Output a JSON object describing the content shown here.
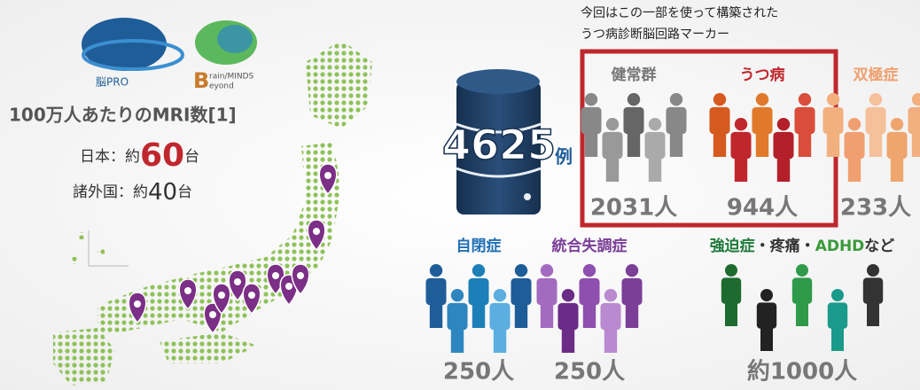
{
  "logos": [
    {
      "name": "脳PRO"
    },
    {
      "initial": "B",
      "line1": "rain/MINDS",
      "initial2": "B",
      "line2": "eyond"
    }
  ],
  "mri": {
    "title": "100万人あたりのMRI数[1]",
    "japan": {
      "prefix": "日本：約",
      "number": "60",
      "unit": "台"
    },
    "others": {
      "prefix": "諸外国：約",
      "number": "40",
      "unit": "台"
    }
  },
  "note": [
    "今回はこの一部を使って構築された",
    "うつ病診断脳回路マーカー"
  ],
  "total": {
    "number": "4625",
    "unit": "例"
  },
  "groups": [
    {
      "label": [
        "健常群"
      ],
      "count": "2031人"
    },
    {
      "label": [
        "うつ病"
      ],
      "count": "944人"
    },
    {
      "label": [
        "双極症"
      ],
      "count": "233人"
    },
    {
      "label": [
        "自閉症"
      ],
      "count": "250人"
    },
    {
      "label": [
        "統合失調症"
      ],
      "count": "250人"
    },
    {
      "label": [
        "強迫症",
        "・疼痛・",
        "ADHD",
        "など"
      ],
      "count": "約1000人"
    }
  ]
}
